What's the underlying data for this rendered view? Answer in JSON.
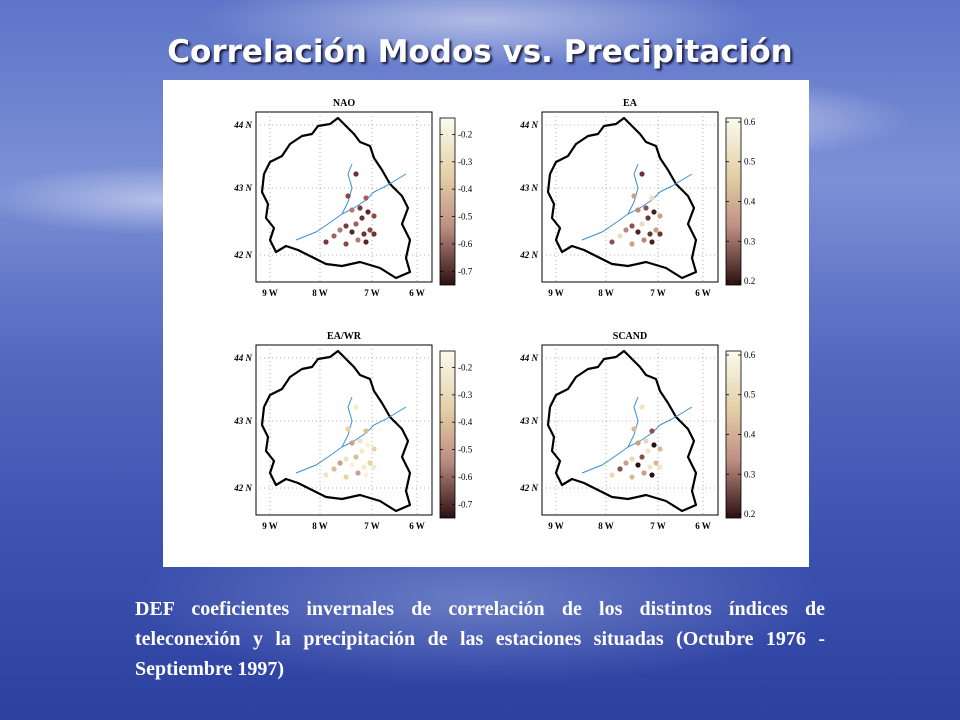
{
  "title": "Correlación Modos vs. Precipitación",
  "panels": [
    {
      "title": "NAO",
      "lat_labels": [
        "44  N",
        "43  N",
        "42  N"
      ],
      "lon_labels": [
        "9  W",
        "8  W",
        "7  W",
        "6  W"
      ],
      "colorbar": {
        "lim": [
          -0.75,
          -0.14
        ],
        "ticks": [
          -0.2,
          -0.3,
          -0.4,
          -0.5,
          -0.6,
          -0.7
        ]
      }
    },
    {
      "title": "EA",
      "lat_labels": [
        "44  N",
        "43  N",
        "42  N"
      ],
      "lon_labels": [
        "9  W",
        "8  W",
        "7  W",
        "6  W"
      ],
      "colorbar": {
        "lim": [
          0.19,
          0.61
        ],
        "ticks": [
          0.6,
          0.5,
          0.4,
          0.3,
          0.2
        ]
      }
    },
    {
      "title": "EA/WR",
      "lat_labels": [
        "44  N",
        "43  N",
        "42  N"
      ],
      "lon_labels": [
        "9  W",
        "8  W",
        "7  W",
        "6  W"
      ],
      "colorbar": {
        "lim": [
          -0.75,
          -0.14
        ],
        "ticks": [
          -0.2,
          -0.3,
          -0.4,
          -0.5,
          -0.6,
          -0.7
        ]
      }
    },
    {
      "title": "SCAND",
      "lat_labels": [
        "44  N",
        "43  N",
        "42  N"
      ],
      "lon_labels": [
        "9  W",
        "8  W",
        "7  W",
        "6  W"
      ],
      "colorbar": {
        "lim": [
          0.19,
          0.61
        ],
        "ticks": [
          0.6,
          0.5,
          0.4,
          0.3,
          0.2
        ]
      }
    }
  ],
  "caption": "DEF coeficientes invernales de correlación de los distintos índices de teleconexión y la precipitación de las estaciones situadas (Octubre 1976 - Septiembre 1997)"
}
